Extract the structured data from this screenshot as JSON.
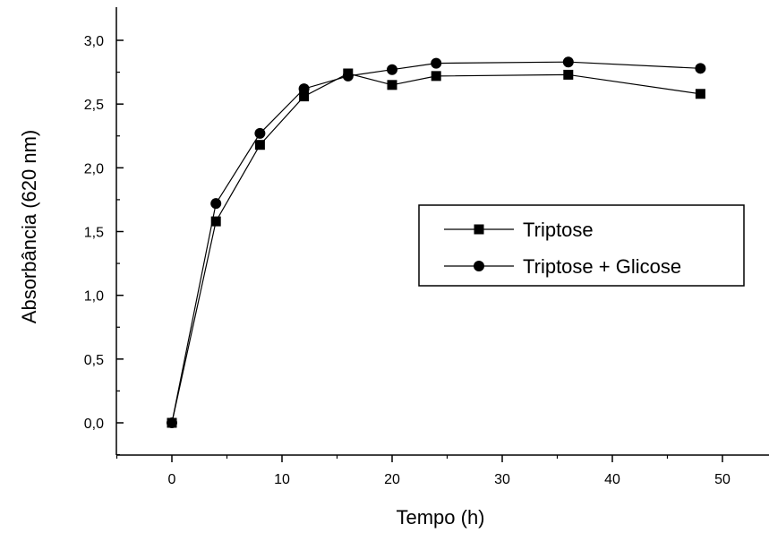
{
  "chart_data": {
    "type": "line",
    "title": "",
    "xlabel": "Tempo (h)",
    "ylabel": "Absorbância (620 nm)",
    "xlim": [
      -5,
      50
    ],
    "ylim": [
      -0.3,
      3.2
    ],
    "xticks": [
      0,
      10,
      20,
      30,
      40,
      50
    ],
    "xtick_labels": [
      "0",
      "10",
      "20",
      "30",
      "40",
      "50"
    ],
    "yticks": [
      0.0,
      0.5,
      1.0,
      1.5,
      2.0,
      2.5,
      3.0
    ],
    "ytick_labels": [
      "0,0",
      "0,5",
      "1,0",
      "1,5",
      "2,0",
      "2,5",
      "3,0"
    ],
    "grid": false,
    "legend_position": "right",
    "series": [
      {
        "name": "Triptose",
        "marker": "square",
        "color": "#000000",
        "x": [
          0,
          4,
          8,
          12,
          16,
          20,
          24,
          36,
          48
        ],
        "y": [
          0.0,
          1.58,
          2.18,
          2.56,
          2.74,
          2.65,
          2.72,
          2.73,
          2.58
        ]
      },
      {
        "name": "Triptose + Glicose",
        "marker": "circle",
        "color": "#000000",
        "x": [
          0,
          4,
          8,
          12,
          16,
          20,
          24,
          36,
          48
        ],
        "y": [
          0.0,
          1.72,
          2.27,
          2.62,
          2.72,
          2.77,
          2.82,
          2.83,
          2.78
        ]
      }
    ]
  }
}
